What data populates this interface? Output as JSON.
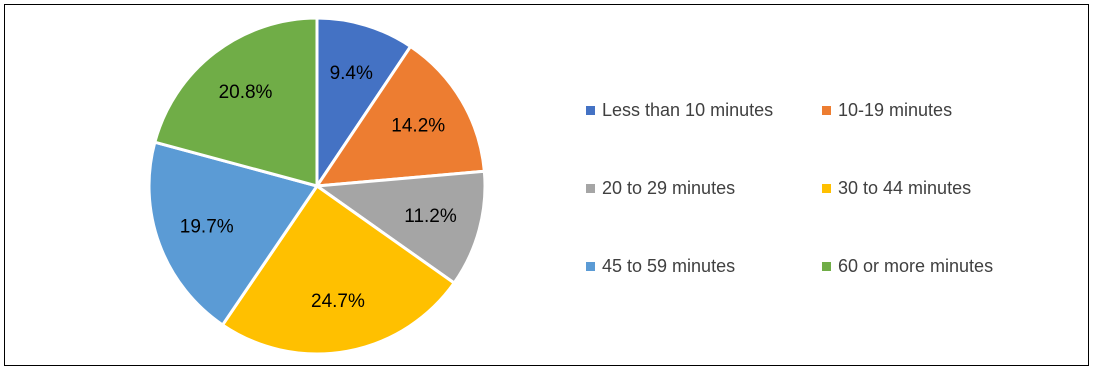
{
  "chart_data": {
    "type": "pie",
    "title": "",
    "slices": [
      {
        "label": "Less than 10 minutes",
        "value": 9.4,
        "display": "9.4%",
        "color": "#4472C4"
      },
      {
        "label": "10-19 minutes",
        "value": 14.2,
        "display": "14.2%",
        "color": "#ED7D31"
      },
      {
        "label": "20 to 29 minutes",
        "value": 11.2,
        "display": "11.2%",
        "color": "#A5A5A5"
      },
      {
        "label": "30 to 44 minutes",
        "value": 24.7,
        "display": "24.7%",
        "color": "#FFC000"
      },
      {
        "label": "45 to 59 minutes",
        "value": 19.7,
        "display": "19.7%",
        "color": "#5B9BD5"
      },
      {
        "label": "60 or more minutes",
        "value": 20.8,
        "display": "20.8%",
        "color": "#70AD47"
      }
    ],
    "start_angle": "12 o'clock",
    "direction": "clockwise",
    "legend_position": "right"
  },
  "legend": {
    "items": [
      {
        "label": "Less than 10 minutes",
        "color": "#4472C4"
      },
      {
        "label": "10-19 minutes",
        "color": "#ED7D31"
      },
      {
        "label": "20 to 29 minutes",
        "color": "#A5A5A5"
      },
      {
        "label": "30 to 44 minutes",
        "color": "#FFC000"
      },
      {
        "label": "45 to 59 minutes",
        "color": "#5B9BD5"
      },
      {
        "label": "60 or more minutes",
        "color": "#70AD47"
      }
    ]
  }
}
